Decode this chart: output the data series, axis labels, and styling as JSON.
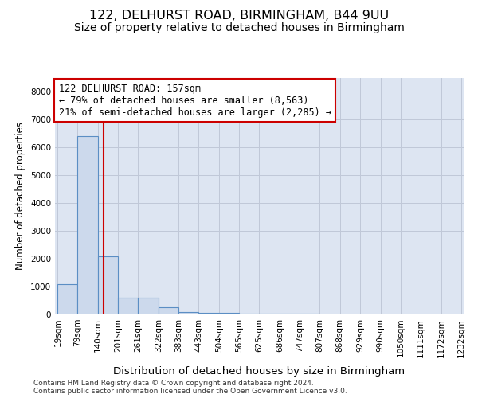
{
  "title1": "122, DELHURST ROAD, BIRMINGHAM, B44 9UU",
  "title2": "Size of property relative to detached houses in Birmingham",
  "xlabel": "Distribution of detached houses by size in Birmingham",
  "ylabel": "Number of detached properties",
  "bar_edges": [
    19,
    79,
    140,
    201,
    261,
    322,
    383,
    443,
    504,
    565,
    625,
    686,
    747,
    807,
    868,
    929,
    990,
    1050,
    1111,
    1172,
    1232
  ],
  "bar_heights": [
    1100,
    6400,
    2100,
    590,
    590,
    250,
    100,
    70,
    50,
    40,
    30,
    20,
    15,
    10,
    8,
    5,
    3,
    2,
    1,
    1
  ],
  "bar_color": "#ccd9ec",
  "bar_edge_color": "#5b8ec4",
  "property_size": 157,
  "property_line_color": "#cc0000",
  "annotation_text": "122 DELHURST ROAD: 157sqm\n← 79% of detached houses are smaller (8,563)\n21% of semi-detached houses are larger (2,285) →",
  "annotation_box_color": "#ffffff",
  "annotation_box_edge_color": "#cc0000",
  "ylim": [
    0,
    8500
  ],
  "yticks": [
    0,
    1000,
    2000,
    3000,
    4000,
    5000,
    6000,
    7000,
    8000
  ],
  "grid_color": "#c0c8d8",
  "bg_color": "#dde5f2",
  "footer1": "Contains HM Land Registry data © Crown copyright and database right 2024.",
  "footer2": "Contains public sector information licensed under the Open Government Licence v3.0.",
  "title_fontsize": 11.5,
  "subtitle_fontsize": 10,
  "ylabel_fontsize": 8.5,
  "xlabel_fontsize": 9.5,
  "tick_fontsize": 7.5,
  "annotation_fontsize": 8.5,
  "footer_fontsize": 6.5
}
